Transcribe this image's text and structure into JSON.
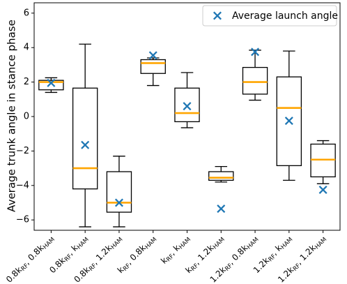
{
  "chart_data": {
    "type": "box",
    "title": "",
    "xlabel": "",
    "ylabel": "Average trunk angle in stance phase",
    "ylim": [
      -6.6,
      6.6
    ],
    "yticks": [
      -6,
      -4,
      -2,
      0,
      2,
      4,
      6
    ],
    "ytick_labels": [
      "−6",
      "−4",
      "−2",
      "0",
      "2",
      "4",
      "6"
    ],
    "grid": false,
    "legend": {
      "position": "top-right",
      "entries": [
        "Average launch angle"
      ]
    },
    "colors": {
      "box": "#000000",
      "median": "#FFA500",
      "marker": "#1F77B4"
    },
    "categories": [
      {
        "a": "0.8k",
        "as": "RF",
        "b": ", 0.8k",
        "bs": "HAM"
      },
      {
        "a": "0.8k",
        "as": "RF",
        "b": ", k",
        "bs": "HAM"
      },
      {
        "a": "0.8k",
        "as": "RF",
        "b": ", 1.2k",
        "bs": "HAM"
      },
      {
        "a": "k",
        "as": "RF",
        "b": ", 0.8k",
        "bs": "HAM"
      },
      {
        "a": "k",
        "as": "RF",
        "b": ", k",
        "bs": "HAM"
      },
      {
        "a": "k",
        "as": "RF",
        "b": ", 1.2k",
        "bs": "HAM"
      },
      {
        "a": "1.2k",
        "as": "RF",
        "b": ", 0.8k",
        "bs": "HAM"
      },
      {
        "a": "1.2k",
        "as": "RF",
        "b": ", k",
        "bs": "HAM"
      },
      {
        "a": "1.2k",
        "as": "RF",
        "b": ", 1.2k",
        "bs": "HAM"
      }
    ],
    "boxes": [
      {
        "whislo": 1.4,
        "q1": 1.55,
        "med": 2.0,
        "q3": 2.1,
        "whishi": 2.25
      },
      {
        "whislo": -6.4,
        "q1": -4.2,
        "med": -3.0,
        "q3": 1.65,
        "whishi": 4.2
      },
      {
        "whislo": -6.4,
        "q1": -5.55,
        "med": -5.0,
        "q3": -3.2,
        "whishi": -2.3
      },
      {
        "whislo": 1.8,
        "q1": 2.5,
        "med": 3.1,
        "q3": 3.3,
        "whishi": 3.4
      },
      {
        "whislo": -0.65,
        "q1": -0.3,
        "med": 0.2,
        "q3": 1.65,
        "whishi": 2.55
      },
      {
        "whislo": -3.8,
        "q1": -3.7,
        "med": -3.55,
        "q3": -3.2,
        "whishi": -2.9
      },
      {
        "whislo": 0.95,
        "q1": 1.3,
        "med": 2.0,
        "q3": 2.85,
        "whishi": 3.85
      },
      {
        "whislo": -3.7,
        "q1": -2.85,
        "med": 0.5,
        "q3": 2.3,
        "whishi": 3.8
      },
      {
        "whislo": -3.9,
        "q1": -3.5,
        "med": -2.5,
        "q3": -1.6,
        "whishi": -1.4
      }
    ],
    "launch_angle": [
      1.95,
      -1.65,
      -5.0,
      3.55,
      0.6,
      -5.35,
      3.75,
      -0.25,
      -4.25
    ]
  }
}
